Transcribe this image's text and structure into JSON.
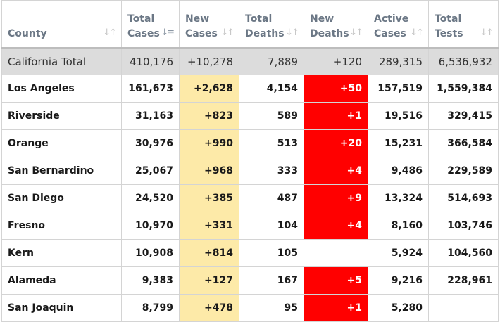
{
  "columns": [
    {
      "line1": "",
      "line2": "County",
      "sort_icon": "sort-icon"
    },
    {
      "line1": "Total",
      "line2": "Cases",
      "sort_icon": "sort-desc-icon"
    },
    {
      "line1": "New",
      "line2": "Cases",
      "sort_icon": "sort-icon"
    },
    {
      "line1": "Total",
      "line2": "Deaths",
      "sort_icon": "sort-icon"
    },
    {
      "line1": "New",
      "line2": "Deaths",
      "sort_icon": "sort-icon"
    },
    {
      "line1": "Active",
      "line2": "Cases",
      "sort_icon": "sort-icon"
    },
    {
      "line1": "Total",
      "line2": "Tests",
      "sort_icon": "sort-icon"
    }
  ],
  "total": {
    "county": "California Total",
    "total_cases": "410,176",
    "new_cases": "+10,278",
    "total_deaths": "7,889",
    "new_deaths": "+120",
    "active_cases": "289,315",
    "total_tests": "6,536,932"
  },
  "rows": [
    {
      "county": "Los Angeles",
      "total_cases": "161,673",
      "new_cases": "+2,628",
      "total_deaths": "4,154",
      "new_deaths": "+50",
      "active_cases": "157,519",
      "total_tests": "1,559,384"
    },
    {
      "county": "Riverside",
      "total_cases": "31,163",
      "new_cases": "+823",
      "total_deaths": "589",
      "new_deaths": "+1",
      "active_cases": "19,516",
      "total_tests": "329,415"
    },
    {
      "county": "Orange",
      "total_cases": "30,976",
      "new_cases": "+990",
      "total_deaths": "513",
      "new_deaths": "+20",
      "active_cases": "15,231",
      "total_tests": "366,584"
    },
    {
      "county": "San Bernardino",
      "total_cases": "25,067",
      "new_cases": "+968",
      "total_deaths": "333",
      "new_deaths": "+4",
      "active_cases": "9,486",
      "total_tests": "229,589"
    },
    {
      "county": "San Diego",
      "total_cases": "24,520",
      "new_cases": "+385",
      "total_deaths": "487",
      "new_deaths": "+9",
      "active_cases": "13,324",
      "total_tests": "514,693"
    },
    {
      "county": "Fresno",
      "total_cases": "10,970",
      "new_cases": "+331",
      "total_deaths": "104",
      "new_deaths": "+4",
      "active_cases": "8,160",
      "total_tests": "103,746"
    },
    {
      "county": "Kern",
      "total_cases": "10,908",
      "new_cases": "+814",
      "total_deaths": "105",
      "new_deaths": "",
      "active_cases": "5,924",
      "total_tests": "104,560"
    },
    {
      "county": "Alameda",
      "total_cases": "9,383",
      "new_cases": "+127",
      "total_deaths": "167",
      "new_deaths": "+5",
      "active_cases": "9,216",
      "total_tests": "228,961"
    },
    {
      "county": "San Joaquin",
      "total_cases": "8,799",
      "new_cases": "+478",
      "total_deaths": "95",
      "new_deaths": "+1",
      "active_cases": "5,280",
      "total_tests": ""
    }
  ],
  "colors": {
    "new_cases_highlight": "#fdeaa8",
    "new_deaths_highlight": "#ff0000",
    "total_row_background": "#dcdcdc",
    "header_text": "#6b7785"
  }
}
